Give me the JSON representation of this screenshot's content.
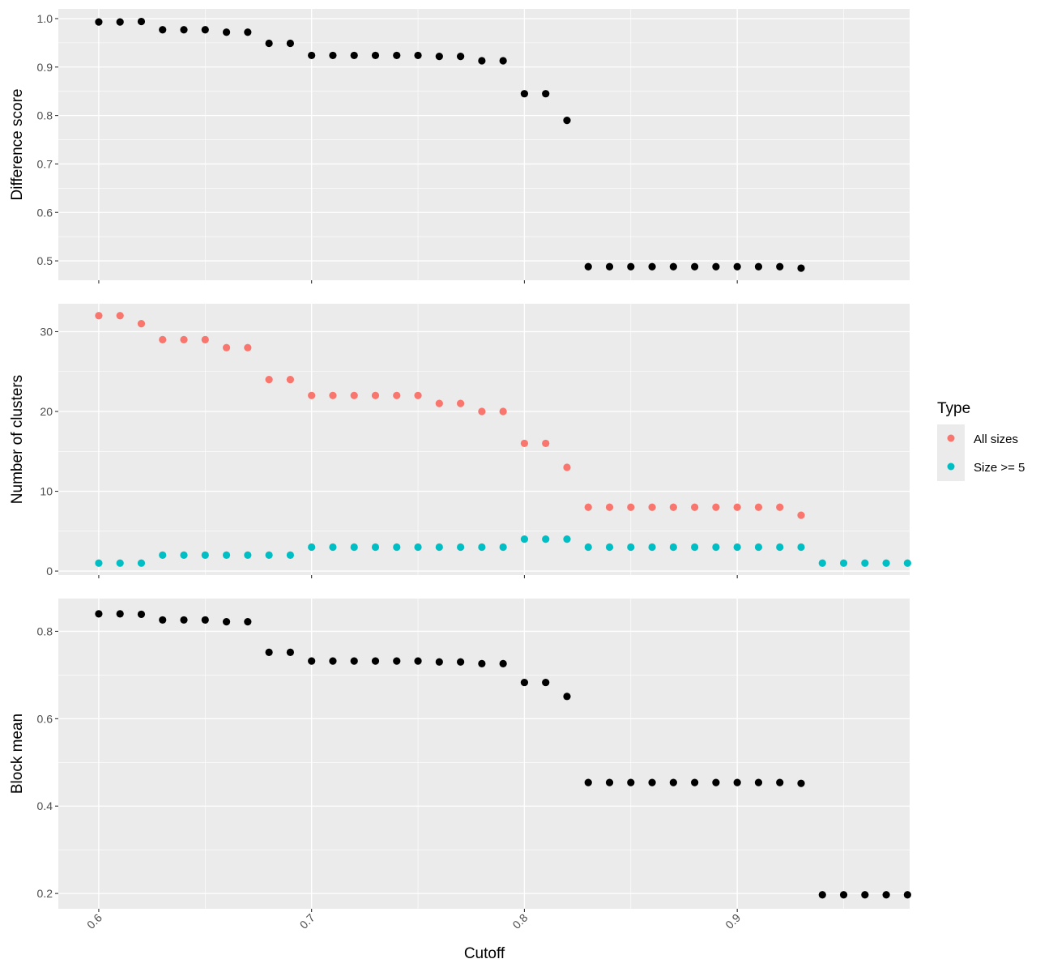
{
  "chart_data": {
    "type": "scatter",
    "xlabel": "Cutoff",
    "x_ticks": [
      "0.6",
      "0.7",
      "0.8",
      "0.9"
    ],
    "xlim": [
      0.581,
      0.981
    ],
    "legend": {
      "title": "Type",
      "position": "right",
      "entries": [
        {
          "label": "All sizes",
          "color": "#F8766D"
        },
        {
          "label": "Size >= 5",
          "color": "#00BFC4"
        }
      ]
    },
    "panels": [
      {
        "ylabel": "Difference score",
        "ylim": [
          0.46,
          1.02
        ],
        "y_ticks": [
          {
            "value": 0.5,
            "label": "0.5"
          },
          {
            "value": 0.6,
            "label": "0.6"
          },
          {
            "value": 0.7,
            "label": "0.7"
          },
          {
            "value": 0.8,
            "label": "0.8"
          },
          {
            "value": 0.9,
            "label": "0.9"
          },
          {
            "value": 1.0,
            "label": "1.0"
          }
        ],
        "series": [
          {
            "color": "#000000",
            "x": [
              0.6,
              0.61,
              0.62,
              0.63,
              0.64,
              0.65,
              0.66,
              0.67,
              0.68,
              0.69,
              0.7,
              0.71,
              0.72,
              0.73,
              0.74,
              0.75,
              0.76,
              0.77,
              0.78,
              0.79,
              0.8,
              0.81,
              0.82,
              0.83,
              0.84,
              0.85,
              0.86,
              0.87,
              0.88,
              0.89,
              0.9,
              0.91,
              0.92,
              0.93
            ],
            "y": [
              0.993,
              0.993,
              0.994,
              0.977,
              0.977,
              0.977,
              0.972,
              0.972,
              0.949,
              0.949,
              0.924,
              0.924,
              0.924,
              0.924,
              0.924,
              0.924,
              0.922,
              0.922,
              0.913,
              0.913,
              0.845,
              0.845,
              0.79,
              0.488,
              0.488,
              0.488,
              0.488,
              0.488,
              0.488,
              0.488,
              0.488,
              0.488,
              0.488,
              0.485
            ]
          }
        ]
      },
      {
        "ylabel": "Number of clusters",
        "ylim": [
          -0.5,
          33.5
        ],
        "y_ticks": [
          {
            "value": 0,
            "label": "0"
          },
          {
            "value": 10,
            "label": "10"
          },
          {
            "value": 20,
            "label": "20"
          },
          {
            "value": 30,
            "label": "30"
          }
        ],
        "series": [
          {
            "name": "All sizes",
            "color": "#F8766D",
            "x": [
              0.6,
              0.61,
              0.62,
              0.63,
              0.64,
              0.65,
              0.66,
              0.67,
              0.68,
              0.69,
              0.7,
              0.71,
              0.72,
              0.73,
              0.74,
              0.75,
              0.76,
              0.77,
              0.78,
              0.79,
              0.8,
              0.81,
              0.82,
              0.83,
              0.84,
              0.85,
              0.86,
              0.87,
              0.88,
              0.89,
              0.9,
              0.91,
              0.92,
              0.93
            ],
            "y": [
              32,
              32,
              31,
              29,
              29,
              29,
              28,
              28,
              24,
              24,
              22,
              22,
              22,
              22,
              22,
              22,
              21,
              21,
              20,
              20,
              16,
              16,
              13,
              8,
              8,
              8,
              8,
              8,
              8,
              8,
              8,
              8,
              8,
              7
            ]
          },
          {
            "name": "Size >= 5",
            "color": "#00BFC4",
            "x": [
              0.6,
              0.61,
              0.62,
              0.63,
              0.64,
              0.65,
              0.66,
              0.67,
              0.68,
              0.69,
              0.7,
              0.71,
              0.72,
              0.73,
              0.74,
              0.75,
              0.76,
              0.77,
              0.78,
              0.79,
              0.8,
              0.81,
              0.82,
              0.83,
              0.84,
              0.85,
              0.86,
              0.87,
              0.88,
              0.89,
              0.9,
              0.91,
              0.92,
              0.93,
              0.94,
              0.95,
              0.96,
              0.97,
              0.98
            ],
            "y": [
              1,
              1,
              1,
              2,
              2,
              2,
              2,
              2,
              2,
              2,
              3,
              3,
              3,
              3,
              3,
              3,
              3,
              3,
              3,
              3,
              4,
              4,
              4,
              3,
              3,
              3,
              3,
              3,
              3,
              3,
              3,
              3,
              3,
              3,
              1,
              1,
              1,
              1,
              1
            ]
          }
        ]
      },
      {
        "ylabel": "Block mean",
        "ylim": [
          0.165,
          0.875
        ],
        "y_ticks": [
          {
            "value": 0.2,
            "label": "0.2"
          },
          {
            "value": 0.4,
            "label": "0.4"
          },
          {
            "value": 0.6,
            "label": "0.6"
          },
          {
            "value": 0.8,
            "label": "0.8"
          }
        ],
        "series": [
          {
            "color": "#000000",
            "x": [
              0.6,
              0.61,
              0.62,
              0.63,
              0.64,
              0.65,
              0.66,
              0.67,
              0.68,
              0.69,
              0.7,
              0.71,
              0.72,
              0.73,
              0.74,
              0.75,
              0.76,
              0.77,
              0.78,
              0.79,
              0.8,
              0.81,
              0.82,
              0.83,
              0.84,
              0.85,
              0.86,
              0.87,
              0.88,
              0.89,
              0.9,
              0.91,
              0.92,
              0.93,
              0.94,
              0.95,
              0.96,
              0.97,
              0.98
            ],
            "y": [
              0.84,
              0.84,
              0.839,
              0.826,
              0.826,
              0.826,
              0.822,
              0.822,
              0.752,
              0.752,
              0.732,
              0.732,
              0.732,
              0.732,
              0.732,
              0.732,
              0.73,
              0.73,
              0.726,
              0.726,
              0.683,
              0.683,
              0.651,
              0.454,
              0.454,
              0.454,
              0.454,
              0.454,
              0.454,
              0.454,
              0.454,
              0.454,
              0.454,
              0.452,
              0.197,
              0.197,
              0.197,
              0.197,
              0.197
            ]
          }
        ]
      }
    ]
  }
}
